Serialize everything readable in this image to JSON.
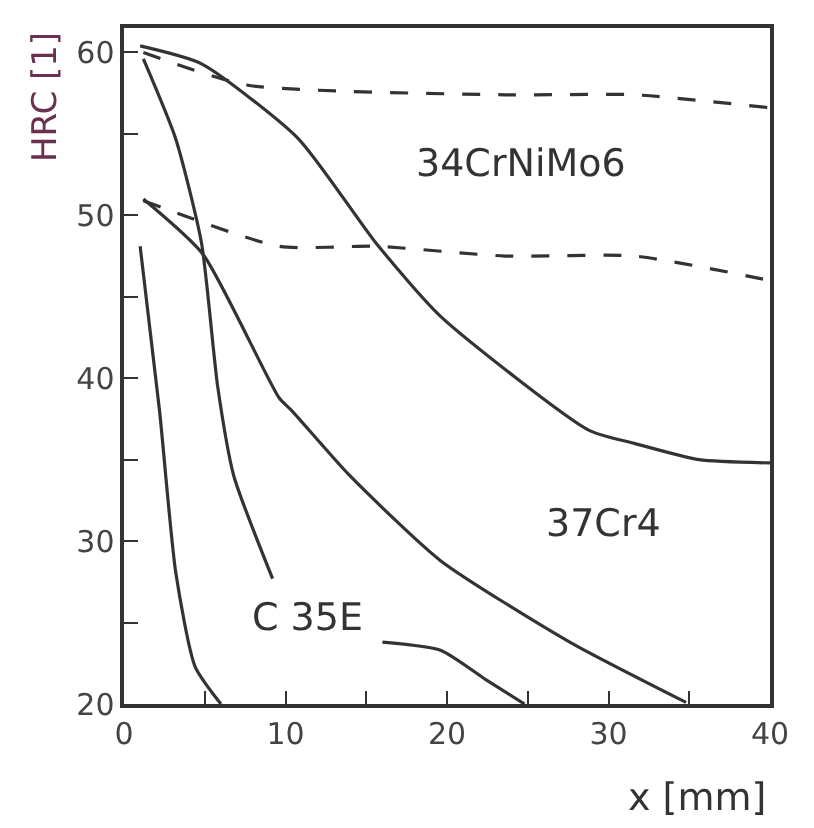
{
  "chart_data": {
    "type": "line",
    "xlabel": "x [mm]",
    "ylabel": "HRC [1]",
    "xlim": [
      0,
      40
    ],
    "ylim": [
      20,
      61.5
    ],
    "xticks": [
      0,
      {
        "value": 5,
        "label": null
      },
      10,
      {
        "value": 15,
        "label": null
      },
      20,
      {
        "value": 25,
        "label": null
      },
      30,
      {
        "value": 35,
        "label": null
      },
      40
    ],
    "yticks": [
      20,
      {
        "value": 25,
        "label": null
      },
      30,
      {
        "value": 35,
        "label": null
      },
      40,
      {
        "value": 45,
        "label": null
      },
      50,
      {
        "value": 55,
        "label": null
      },
      60
    ],
    "marker": "none",
    "series": [
      {
        "color": "#333333",
        "line_style": "solid",
        "x": [
          1,
          4.8,
          10.8,
          15.6,
          19.6,
          28.8,
          31.6,
          35.6,
          40
        ],
        "values": [
          60.4,
          59.3,
          54.7,
          48.3,
          43.8,
          36.8,
          36,
          35,
          34.8
        ]
      },
      {
        "color": "#333333",
        "line_style": "dashed",
        "x": [
          1.2,
          7.6,
          23.6,
          31.6,
          40
        ],
        "values": [
          60,
          58,
          57.4,
          57.4,
          56.6
        ]
      },
      {
        "color": "#333333",
        "line_style": "dashed",
        "x": [
          1.2,
          9.6,
          15.6,
          23.6,
          31.6,
          40
        ],
        "values": [
          50.9,
          48.1,
          48.1,
          47.5,
          47.5,
          46
        ]
      },
      {
        "color": "#333333",
        "line_style": "solid",
        "x": [
          1.2,
          4.9,
          9.6,
          10.4,
          14,
          19.6,
          27.6,
          34.8
        ],
        "values": [
          51,
          47.6,
          38.8,
          38,
          34,
          28.8,
          23.8,
          20.1
        ]
      },
      {
        "color": "#333333",
        "line_style": "solid",
        "x": [
          1.2,
          3.2,
          4.8,
          5.8,
          6.8,
          9.2
        ],
        "values": [
          59.6,
          54.7,
          48.3,
          39.5,
          34,
          27.7
        ]
      },
      {
        "color": "#333333",
        "line_style": "solid",
        "x": [
          1,
          2.2,
          3.2,
          4.4,
          6
        ],
        "values": [
          48.1,
          38,
          28.1,
          22.3,
          20
        ]
      },
      {
        "color": "#333333",
        "line_style": "solid",
        "x": [
          16,
          19.6,
          22.4,
          24.8
        ],
        "values": [
          23.8,
          23.3,
          21.5,
          20
        ]
      }
    ],
    "annotations": [
      "34CrNiMo6",
      "37Cr4",
      "C 35E"
    ]
  }
}
